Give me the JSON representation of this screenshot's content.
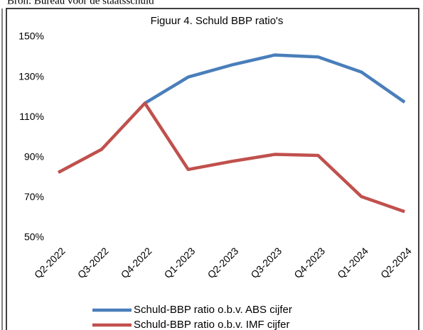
{
  "source": "Bron: Bureau voor de staatsschuld",
  "chart_data": {
    "type": "line",
    "title": "Figuur 4. Schuld BBP ratio's",
    "categories": [
      "Q2-2022",
      "Q3-2022",
      "Q4-2022",
      "Q1-2023",
      "Q2-2023",
      "Q3-2023",
      "Q4-2023",
      "Q1-2024",
      "Q2-2024"
    ],
    "series": [
      {
        "name": "Schuld-BBP ratio o.b.v. ABS cijfer",
        "color": "#4a7ebb",
        "values": [
          null,
          null,
          117,
          130,
          136,
          141,
          140,
          132.5,
          117.5
        ]
      },
      {
        "name": "Schuld-BBP ratio o.b.v. IMF cijfer",
        "color": "#c0504d",
        "values": [
          82.5,
          94,
          117,
          84,
          88,
          91.5,
          91,
          70.5,
          63
        ]
      }
    ],
    "ylim": [
      50,
      150
    ],
    "yticks": [
      {
        "value": 50,
        "label": "50%"
      },
      {
        "value": 70,
        "label": "70%"
      },
      {
        "value": 90,
        "label": "90%"
      },
      {
        "value": 110,
        "label": "110%"
      },
      {
        "value": 130,
        "label": "130%"
      },
      {
        "value": 150,
        "label": "150%"
      }
    ],
    "grid": false,
    "legend": "bottom"
  }
}
